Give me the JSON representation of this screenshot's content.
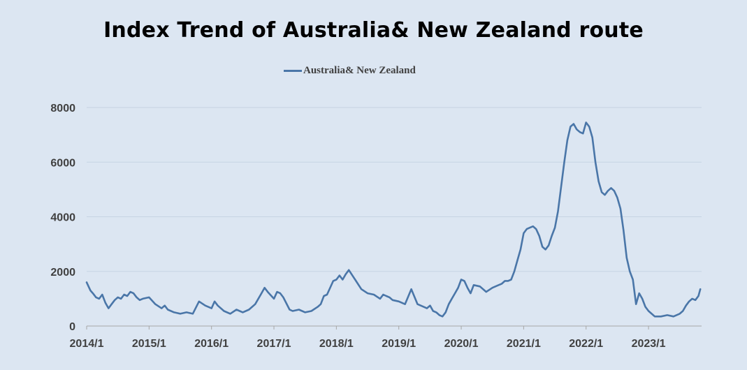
{
  "chart_data": {
    "type": "line",
    "title": "Index Trend of Australia& New Zealand route",
    "legend_position": "top-center",
    "grid": true,
    "ylim": [
      0,
      8000
    ],
    "yticks": [
      "0",
      "2000",
      "4000",
      "6000",
      "8000"
    ],
    "xlim": [
      2014.0,
      2023.85
    ],
    "xticks": [
      "2014/1",
      "2015/1",
      "2016/1",
      "2017/1",
      "2018/1",
      "2019/1",
      "2020/1",
      "2021/1",
      "2022/1",
      "2023/1"
    ],
    "line_color": "#4a76a8",
    "series": [
      {
        "name": "Australia& New Zealand",
        "x": [
          2014.0,
          2014.03,
          2014.06,
          2014.1,
          2014.15,
          2014.2,
          2014.25,
          2014.3,
          2014.35,
          2014.4,
          2014.45,
          2014.5,
          2014.55,
          2014.6,
          2014.65,
          2014.7,
          2014.75,
          2014.8,
          2014.85,
          2014.9,
          2015.0,
          2015.1,
          2015.2,
          2015.25,
          2015.3,
          2015.4,
          2015.5,
          2015.6,
          2015.7,
          2015.8,
          2015.9,
          2016.0,
          2016.05,
          2016.1,
          2016.2,
          2016.3,
          2016.4,
          2016.5,
          2016.6,
          2016.7,
          2016.8,
          2016.85,
          2016.9,
          2017.0,
          2017.05,
          2017.1,
          2017.15,
          2017.25,
          2017.3,
          2017.4,
          2017.5,
          2017.6,
          2017.7,
          2017.75,
          2017.8,
          2017.85,
          2017.95,
          2018.0,
          2018.05,
          2018.1,
          2018.15,
          2018.2,
          2018.3,
          2018.4,
          2018.5,
          2018.6,
          2018.7,
          2018.75,
          2018.8,
          2018.85,
          2018.9,
          2019.0,
          2019.1,
          2019.2,
          2019.3,
          2019.4,
          2019.45,
          2019.5,
          2019.55,
          2019.6,
          2019.65,
          2019.7,
          2019.75,
          2019.8,
          2019.85,
          2019.9,
          2019.95,
          2020.0,
          2020.05,
          2020.1,
          2020.15,
          2020.2,
          2020.3,
          2020.4,
          2020.5,
          2020.6,
          2020.65,
          2020.7,
          2020.75,
          2020.8,
          2020.85,
          2020.9,
          2020.95,
          2021.0,
          2021.05,
          2021.1,
          2021.15,
          2021.2,
          2021.25,
          2021.3,
          2021.35,
          2021.4,
          2021.45,
          2021.5,
          2021.55,
          2021.6,
          2021.65,
          2021.7,
          2021.75,
          2021.8,
          2021.85,
          2021.9,
          2021.95,
          2022.0,
          2022.05,
          2022.1,
          2022.15,
          2022.2,
          2022.25,
          2022.3,
          2022.35,
          2022.4,
          2022.45,
          2022.5,
          2022.55,
          2022.6,
          2022.65,
          2022.7,
          2022.75,
          2022.8,
          2022.85,
          2022.9,
          2022.95,
          2023.0,
          2023.05,
          2023.1,
          2023.2,
          2023.3,
          2023.4,
          2023.5,
          2023.55,
          2023.6,
          2023.65,
          2023.7,
          2023.75,
          2023.8,
          2023.83
        ],
        "values": [
          1600,
          1450,
          1300,
          1200,
          1050,
          1000,
          1150,
          850,
          650,
          800,
          950,
          1050,
          1000,
          1150,
          1100,
          1250,
          1200,
          1050,
          950,
          1000,
          1050,
          800,
          650,
          750,
          600,
          500,
          450,
          500,
          450,
          900,
          750,
          650,
          900,
          750,
          550,
          450,
          600,
          500,
          600,
          800,
          1200,
          1400,
          1250,
          1000,
          1250,
          1200,
          1050,
          600,
          550,
          600,
          500,
          550,
          700,
          800,
          1100,
          1150,
          1650,
          1700,
          1850,
          1700,
          1900,
          2050,
          1700,
          1350,
          1200,
          1150,
          1000,
          1150,
          1100,
          1050,
          950,
          900,
          800,
          1350,
          800,
          700,
          650,
          750,
          550,
          500,
          400,
          350,
          500,
          800,
          1000,
          1200,
          1400,
          1700,
          1650,
          1400,
          1200,
          1500,
          1450,
          1250,
          1400,
          1500,
          1550,
          1650,
          1650,
          1700,
          2000,
          2400,
          2800,
          3400,
          3550,
          3600,
          3650,
          3550,
          3300,
          2900,
          2800,
          2950,
          3300,
          3600,
          4200,
          5100,
          6000,
          6800,
          7300,
          7400,
          7200,
          7100,
          7050,
          7450,
          7300,
          6900,
          6000,
          5300,
          4900,
          4800,
          4950,
          5050,
          4950,
          4700,
          4300,
          3500,
          2500,
          2000,
          1700,
          800,
          1200,
          1000,
          700,
          550,
          450,
          350,
          350,
          400,
          350,
          450,
          550,
          750,
          900,
          1000,
          950,
          1100,
          1350
        ]
      }
    ]
  }
}
